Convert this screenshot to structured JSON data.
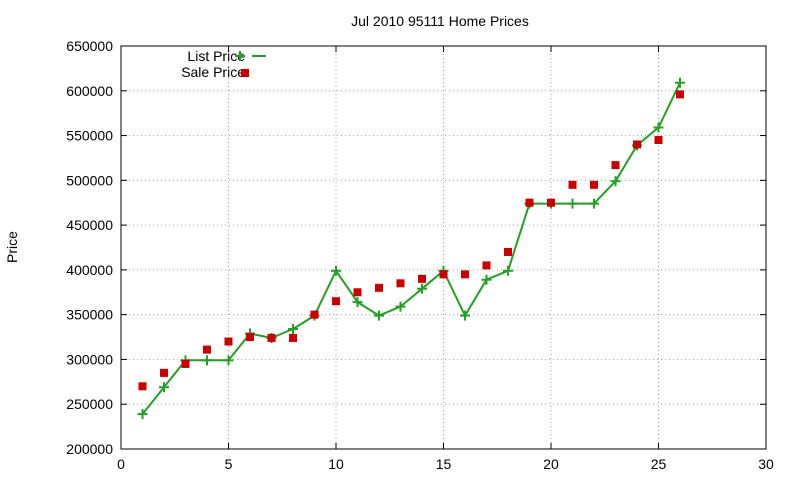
{
  "chart_data": {
    "type": "line",
    "title": "Jul 2010 95111 Home Prices",
    "ylabel": "Price",
    "xlim": [
      0,
      30
    ],
    "ylim": [
      200000,
      650000
    ],
    "x_ticks": [
      0,
      5,
      10,
      15,
      20,
      25,
      30
    ],
    "y_ticks": [
      200000,
      250000,
      300000,
      350000,
      400000,
      450000,
      500000,
      550000,
      600000,
      650000
    ],
    "grid": true,
    "legend_position": "top-left",
    "series": [
      {
        "name": "List Price",
        "style": "linespoints",
        "color": "#22a022",
        "marker": "plus",
        "points": [
          [
            1,
            239000
          ],
          [
            2,
            269000
          ],
          [
            3,
            299000
          ],
          [
            4,
            299000
          ],
          [
            5,
            299000
          ],
          [
            6,
            329000
          ],
          [
            7,
            324000
          ],
          [
            8,
            334000
          ],
          [
            9,
            349000
          ],
          [
            10,
            399000
          ],
          [
            11,
            364000
          ],
          [
            12,
            349000
          ],
          [
            13,
            359000
          ],
          [
            14,
            379000
          ],
          [
            15,
            399000
          ],
          [
            16,
            349000
          ],
          [
            17,
            389000
          ],
          [
            18,
            399000
          ],
          [
            19,
            474000
          ],
          [
            20,
            474000
          ],
          [
            21,
            474000
          ],
          [
            22,
            474000
          ],
          [
            23,
            499000
          ],
          [
            24,
            539000
          ],
          [
            25,
            559000
          ],
          [
            26,
            609000
          ]
        ]
      },
      {
        "name": "Sale Price",
        "style": "points",
        "color": "#cc0000",
        "marker": "square",
        "points": [
          [
            1,
            270000
          ],
          [
            2,
            285000
          ],
          [
            3,
            295000
          ],
          [
            4,
            311000
          ],
          [
            5,
            320000
          ],
          [
            6,
            325000
          ],
          [
            7,
            324000
          ],
          [
            8,
            324000
          ],
          [
            9,
            350000
          ],
          [
            10,
            365000
          ],
          [
            11,
            375000
          ],
          [
            12,
            380000
          ],
          [
            13,
            385000
          ],
          [
            14,
            390000
          ],
          [
            15,
            395000
          ],
          [
            16,
            395000
          ],
          [
            17,
            405000
          ],
          [
            18,
            420000
          ],
          [
            19,
            475000
          ],
          [
            20,
            475000
          ],
          [
            21,
            495000
          ],
          [
            22,
            495000
          ],
          [
            23,
            517000
          ],
          [
            24,
            540000
          ],
          [
            25,
            545000
          ],
          [
            26,
            596000
          ]
        ]
      }
    ]
  }
}
